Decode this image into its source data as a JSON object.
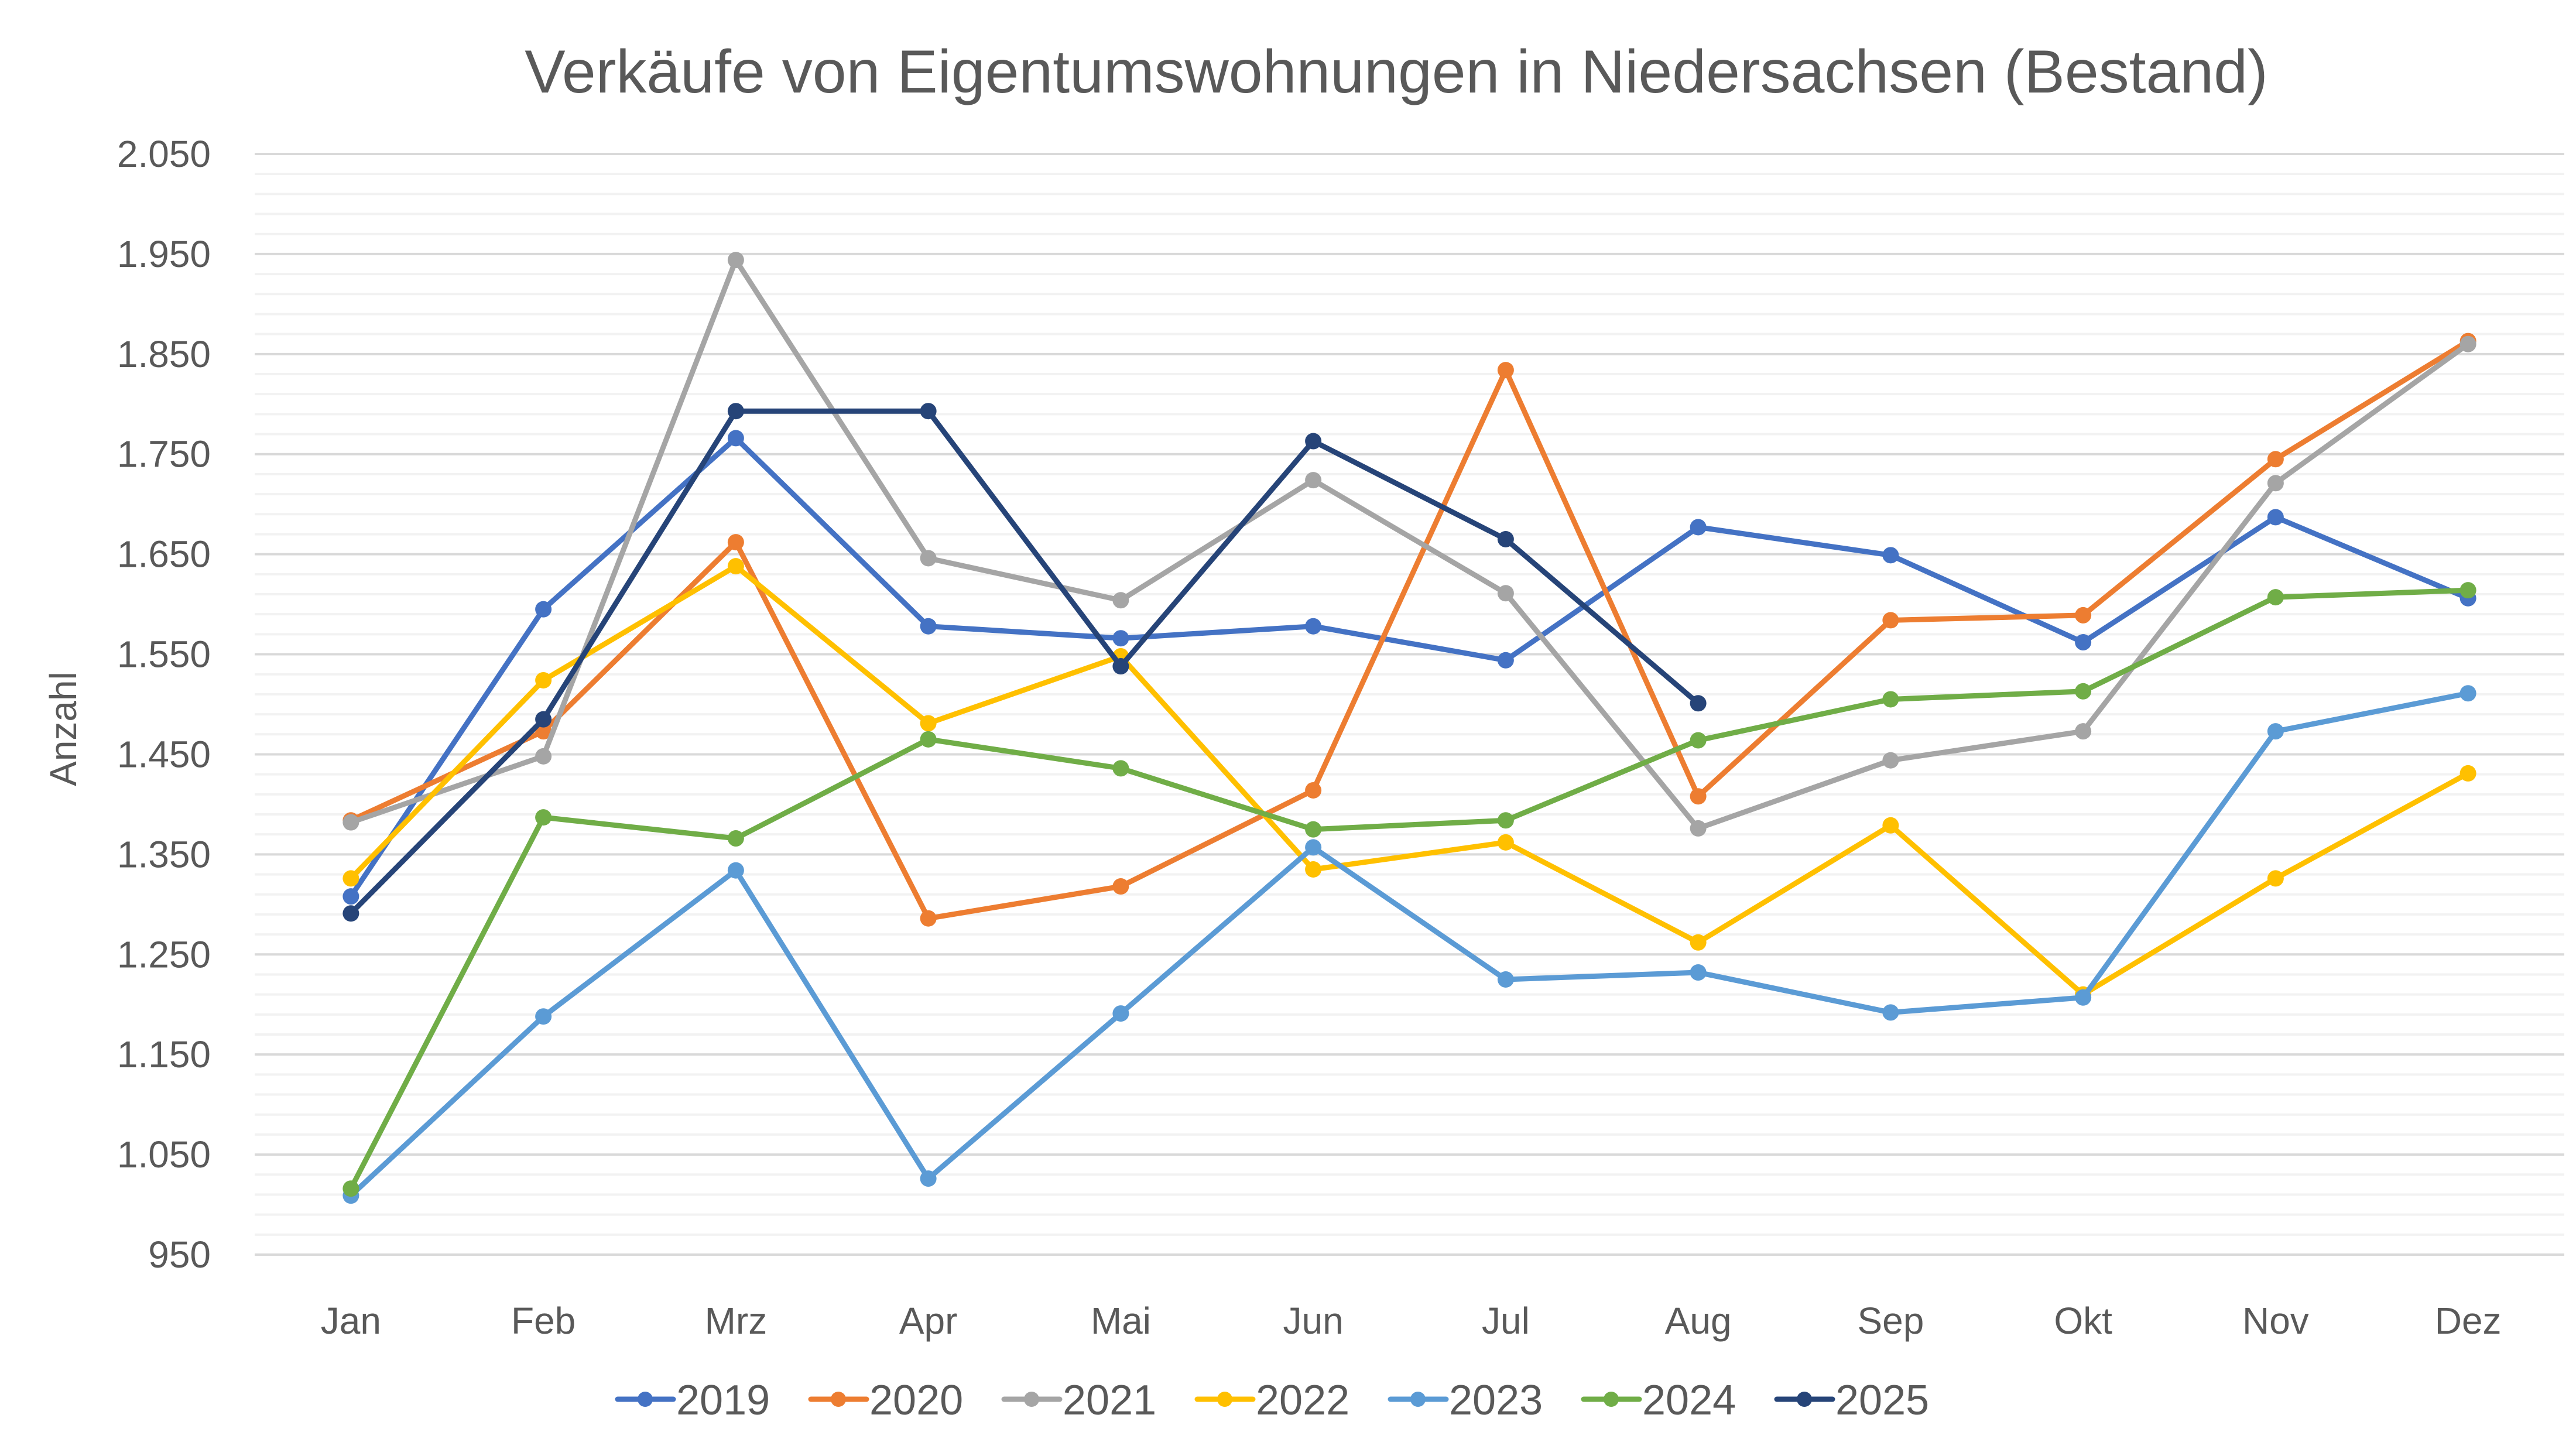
{
  "chart_data": {
    "type": "line",
    "title": "Verkäufe von Eigentumswohnungen in Niedersachsen (Bestand)",
    "xlabel": "",
    "ylabel": "Anzahl",
    "categories": [
      "Jan",
      "Feb",
      "Mrz",
      "Apr",
      "Mai",
      "Jun",
      "Jul",
      "Aug",
      "Sep",
      "Okt",
      "Nov",
      "Dez"
    ],
    "ylim": [
      950,
      2050
    ],
    "y_major_step": 100,
    "y_minor_step": 20,
    "y_tick_labels": [
      "2.050",
      "1.950",
      "1.850",
      "1.750",
      "1.650",
      "1.550",
      "1.450",
      "1.350",
      "1.250",
      "1.150",
      "1.050",
      "950"
    ],
    "y_tick_values": [
      2050,
      1950,
      1850,
      1750,
      1650,
      1550,
      1450,
      1350,
      1250,
      1150,
      1050,
      950
    ],
    "grid": true,
    "legend_position": "bottom",
    "series": [
      {
        "name": "2019",
        "color": "#4472C4",
        "values": [
          1308,
          1595,
          1766,
          1578,
          1566,
          1578,
          1544,
          1677,
          1649,
          1562,
          1687,
          1606
        ]
      },
      {
        "name": "2020",
        "color": "#ED7D31",
        "values": [
          1384,
          1473,
          1662,
          1286,
          1318,
          1414,
          1834,
          1408,
          1584,
          1589,
          1745,
          1863
        ]
      },
      {
        "name": "2021",
        "color": "#A5A5A5",
        "values": [
          1382,
          1448,
          1944,
          1646,
          1604,
          1724,
          1611,
          1376,
          1444,
          1473,
          1721,
          1860
        ]
      },
      {
        "name": "2022",
        "color": "#FFC000",
        "values": [
          1326,
          1524,
          1638,
          1481,
          1548,
          1335,
          1362,
          1262,
          1379,
          1210,
          1326,
          1431
        ]
      },
      {
        "name": "2023",
        "color": "#5B9BD5",
        "values": [
          1009,
          1188,
          1334,
          1026,
          1191,
          1357,
          1225,
          1232,
          1192,
          1207,
          1473,
          1511
        ]
      },
      {
        "name": "2024",
        "color": "#70AD47",
        "values": [
          1016,
          1387,
          1366,
          1465,
          1436,
          1375,
          1384,
          1464,
          1505,
          1513,
          1607,
          1614
        ]
      },
      {
        "name": "2025",
        "color": "#264478",
        "values": [
          1291,
          1485,
          1793,
          1793,
          1538,
          1763,
          1665,
          1501,
          null,
          null,
          null,
          null
        ]
      }
    ]
  }
}
